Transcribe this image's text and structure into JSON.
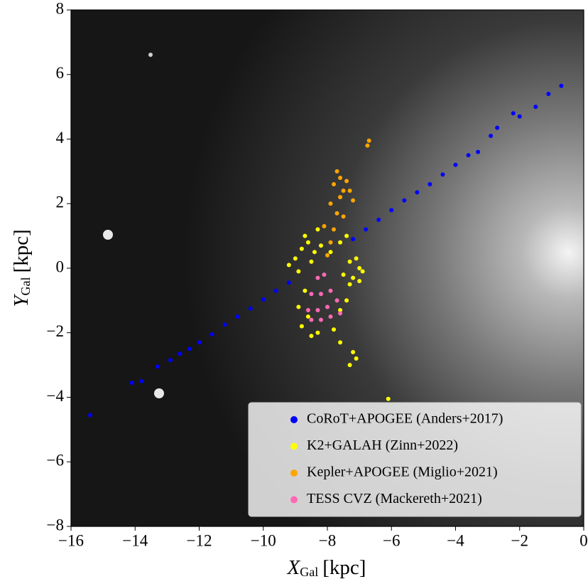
{
  "chart_data": {
    "type": "scatter",
    "xlabel": {
      "symbol": "X",
      "subscript": "Gal",
      "unit": "[kpc]"
    },
    "ylabel": {
      "symbol": "Y",
      "subscript": "Gal",
      "unit": "[kpc]"
    },
    "xlim": [
      -16,
      0
    ],
    "ylim": [
      -8,
      8
    ],
    "xticks": [
      {
        "value": -16,
        "label": "−16"
      },
      {
        "value": -14,
        "label": "−14"
      },
      {
        "value": -12,
        "label": "−12"
      },
      {
        "value": -10,
        "label": "−10"
      },
      {
        "value": -8,
        "label": "−8"
      },
      {
        "value": -6,
        "label": "−6"
      },
      {
        "value": -4,
        "label": "−4"
      },
      {
        "value": -2,
        "label": "−2"
      },
      0
    ],
    "yticks": [
      {
        "value": -8,
        "label": "−8"
      },
      {
        "value": -6,
        "label": "−6"
      },
      {
        "value": -4,
        "label": "−4"
      },
      {
        "value": -2,
        "label": "−2"
      },
      0,
      2,
      4,
      6,
      8
    ],
    "legend": "lower right",
    "series": [
      {
        "name": "CoRoT+APOGEE (Anders+2017)",
        "color": "#0000ff",
        "x": [
          -15.4,
          -14.1,
          -13.8,
          -13.3,
          -12.9,
          -12.6,
          -12.3,
          -12.0,
          -11.6,
          -11.2,
          -10.8,
          -10.4,
          -10.0,
          -9.6,
          -9.2,
          -7.2,
          -6.8,
          -6.4,
          -6.0,
          -5.6,
          -5.2,
          -4.8,
          -4.4,
          -4.0,
          -3.6,
          -3.3,
          -2.9,
          -2.7,
          -2.2,
          -2.0,
          -1.5,
          -1.1,
          -0.7
        ],
        "values": [
          -4.55,
          -3.55,
          -3.5,
          -3.05,
          -2.85,
          -2.65,
          -2.5,
          -2.3,
          -2.05,
          -1.75,
          -1.5,
          -1.25,
          -0.97,
          -0.7,
          -0.45,
          0.9,
          1.2,
          1.5,
          1.8,
          2.1,
          2.35,
          2.6,
          2.9,
          3.2,
          3.5,
          3.6,
          4.1,
          4.35,
          4.8,
          4.7,
          5.0,
          5.4,
          5.65
        ]
      },
      {
        "name": "K2+GALAH (Zinn+2022)",
        "color": "#ffff00",
        "x": [
          -9.2,
          -9.0,
          -8.9,
          -8.8,
          -8.7,
          -8.6,
          -8.5,
          -8.4,
          -8.3,
          -8.2,
          -7.9,
          -7.6,
          -7.4,
          -7.3,
          -7.1,
          -7.0,
          -6.9,
          -7.5,
          -7.2,
          -8.7,
          -8.9,
          -8.6,
          -8.8,
          -8.5,
          -8.3,
          -7.8,
          -7.6,
          -7.4,
          -7.3,
          -7.0,
          -7.6,
          -7.2,
          -7.1,
          -7.3,
          -6.1
        ],
        "values": [
          0.1,
          0.3,
          -0.1,
          0.6,
          1.0,
          0.8,
          0.2,
          0.5,
          1.2,
          0.7,
          0.5,
          0.8,
          1.0,
          0.2,
          0.3,
          0.0,
          -0.1,
          -0.2,
          -0.3,
          -0.7,
          -1.2,
          -1.5,
          -1.8,
          -2.1,
          -2.0,
          -1.9,
          -1.3,
          -1.0,
          -0.5,
          -0.4,
          -2.3,
          -2.6,
          -2.8,
          -3.0,
          -4.05
        ]
      },
      {
        "name": "Kepler+APOGEE (Miglio+2021)",
        "color": "#ffa500",
        "x": [
          -8.0,
          -7.9,
          -8.1,
          -7.8,
          -7.7,
          -7.9,
          -7.6,
          -7.5,
          -7.8,
          -7.6,
          -7.7,
          -7.4,
          -7.3,
          -7.2,
          -7.5,
          -6.75,
          -6.7
        ],
        "values": [
          0.4,
          0.8,
          1.3,
          1.2,
          1.7,
          2.0,
          2.2,
          2.4,
          2.6,
          2.8,
          3.0,
          2.7,
          2.4,
          2.1,
          1.6,
          3.8,
          3.95
        ]
      },
      {
        "name": "TESS CVZ (Mackereth+2021)",
        "color": "#ff69b4",
        "x": [
          -8.3,
          -8.1,
          -8.5,
          -8.2,
          -7.9,
          -8.6,
          -8.3,
          -8.0,
          -7.7,
          -8.5,
          -8.2,
          -7.9,
          -7.6
        ],
        "values": [
          -0.3,
          -0.2,
          -0.8,
          -0.8,
          -0.7,
          -1.3,
          -1.3,
          -1.2,
          -1.0,
          -1.6,
          -1.6,
          -1.5,
          -1.4
        ]
      }
    ]
  }
}
